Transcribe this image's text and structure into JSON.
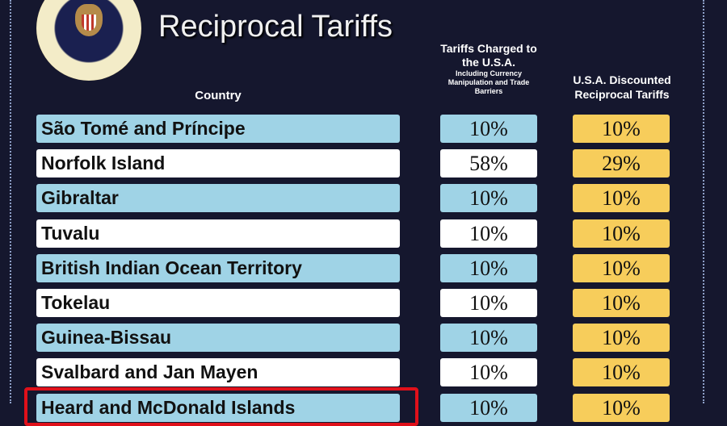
{
  "title": "Reciprocal Tariffs",
  "seal_text": "SEAL OF THE PRESIDENT OF THE UNITED STATES",
  "headers": {
    "country": "Country",
    "charged_main": "Tariffs Charged to the U.S.A.",
    "charged_sub": "Including Currency Manipulation and Trade Barriers",
    "reciprocal": "U.S.A. Discounted Reciprocal Tariffs"
  },
  "rows": [
    {
      "country": "São Tomé and Príncipe",
      "charged": "10%",
      "reciprocal": "10%"
    },
    {
      "country": "Norfolk Island",
      "charged": "58%",
      "reciprocal": "29%"
    },
    {
      "country": "Gibraltar",
      "charged": "10%",
      "reciprocal": "10%"
    },
    {
      "country": "Tuvalu",
      "charged": "10%",
      "reciprocal": "10%"
    },
    {
      "country": "British Indian Ocean Territory",
      "charged": "10%",
      "reciprocal": "10%"
    },
    {
      "country": "Tokelau",
      "charged": "10%",
      "reciprocal": "10%"
    },
    {
      "country": "Guinea-Bissau",
      "charged": "10%",
      "reciprocal": "10%"
    },
    {
      "country": "Svalbard and Jan Mayen",
      "charged": "10%",
      "reciprocal": "10%"
    },
    {
      "country": "Heard and McDonald Islands",
      "charged": "10%",
      "reciprocal": "10%"
    }
  ],
  "colors": {
    "background": "#15172e",
    "row_blue": "#9fd3e6",
    "reciprocal": "#f7cd5b",
    "highlight": "#e0101a"
  }
}
